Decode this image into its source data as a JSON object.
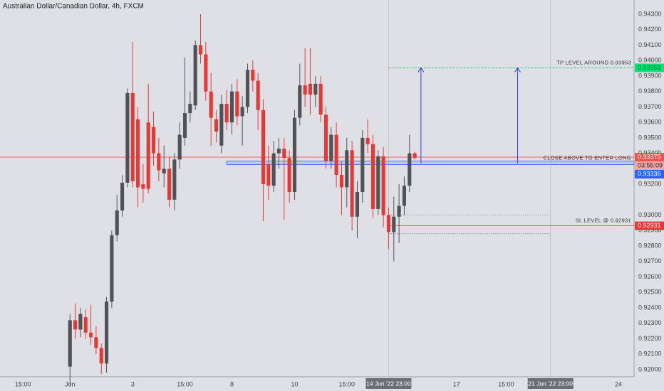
{
  "chart_data": {
    "type": "candlestick",
    "title": "Australian Dollar/Canadian Dollar, 4h, FXCM",
    "x": [
      0,
      1,
      2,
      3,
      4,
      5,
      6,
      7,
      8,
      9,
      10,
      11,
      12,
      13,
      14,
      15,
      16,
      17,
      18,
      19,
      20,
      21,
      22,
      23,
      24,
      25,
      26,
      27,
      28,
      29,
      30,
      31,
      32,
      33,
      34,
      35,
      36,
      37,
      38,
      39,
      40,
      41,
      42,
      43,
      44,
      45,
      46,
      47,
      48,
      49,
      50,
      51,
      52,
      53,
      54,
      55,
      56,
      57,
      58,
      59,
      60,
      61,
      62,
      63,
      64,
      65,
      66
    ],
    "open": [
      0.9202,
      0.9232,
      0.9226,
      0.9234,
      0.9224,
      0.9221,
      0.9214,
      0.9204,
      0.9244,
      0.9287,
      0.9303,
      0.9321,
      0.9379,
      0.9362,
      0.932,
      0.936,
      0.9357,
      0.934,
      0.9327,
      0.933,
      0.931,
      0.9336,
      0.935,
      0.9366,
      0.9371,
      0.941,
      0.9404,
      0.938,
      0.9362,
      0.9345,
      0.9372,
      0.936,
      0.938,
      0.9364,
      0.937,
      0.9394,
      0.9387,
      0.9368,
      0.9333,
      0.9319,
      0.934,
      0.9343,
      0.9337,
      0.9315,
      0.9363,
      0.9384,
      0.9385,
      0.9378,
      0.9385,
      0.9365,
      0.9335,
      0.9352,
      0.9326,
      0.9318,
      0.9342,
      0.9299,
      0.9315,
      0.935,
      0.9346,
      0.9304,
      0.9338,
      0.93,
      0.9289,
      0.9299,
      0.9306,
      0.9319,
      0.934
    ],
    "high": [
      0.9236,
      0.9243,
      0.924,
      0.9239,
      0.9242,
      0.9228,
      0.9217,
      0.9247,
      0.929,
      0.9313,
      0.9326,
      0.9382,
      0.9412,
      0.937,
      0.9333,
      0.9385,
      0.9367,
      0.935,
      0.9345,
      0.9338,
      0.934,
      0.936,
      0.9402,
      0.938,
      0.9413,
      0.943,
      0.9412,
      0.9392,
      0.9368,
      0.9378,
      0.9381,
      0.9385,
      0.9388,
      0.9377,
      0.9398,
      0.94,
      0.9392,
      0.9375,
      0.9345,
      0.9348,
      0.935,
      0.935,
      0.9342,
      0.9368,
      0.9398,
      0.9408,
      0.9408,
      0.939,
      0.939,
      0.937,
      0.9357,
      0.936,
      0.9335,
      0.935,
      0.9348,
      0.9322,
      0.9355,
      0.9362,
      0.9352,
      0.9342,
      0.9344,
      0.9305,
      0.9312,
      0.932,
      0.9325,
      0.9352,
      0.9341
    ],
    "low": [
      0.919,
      0.922,
      0.9221,
      0.922,
      0.9216,
      0.921,
      0.9197,
      0.9198,
      0.924,
      0.9283,
      0.9299,
      0.9318,
      0.9318,
      0.9305,
      0.9308,
      0.9314,
      0.9332,
      0.9322,
      0.9318,
      0.9305,
      0.9303,
      0.933,
      0.9345,
      0.936,
      0.9368,
      0.9398,
      0.9374,
      0.9345,
      0.9347,
      0.934,
      0.9355,
      0.9352,
      0.9358,
      0.9345,
      0.9366,
      0.938,
      0.9355,
      0.9296,
      0.931,
      0.9315,
      0.933,
      0.9297,
      0.9308,
      0.931,
      0.9358,
      0.937,
      0.9365,
      0.937,
      0.936,
      0.933,
      0.933,
      0.9318,
      0.93,
      0.9305,
      0.929,
      0.9285,
      0.9308,
      0.934,
      0.9298,
      0.93,
      0.9292,
      0.9278,
      0.927,
      0.9282,
      0.93,
      0.9315,
      0.9336
    ],
    "close": [
      0.9232,
      0.9226,
      0.9236,
      0.9224,
      0.9221,
      0.9214,
      0.9204,
      0.9244,
      0.9287,
      0.9303,
      0.9321,
      0.9379,
      0.9322,
      0.9318,
      0.9317,
      0.9317,
      0.934,
      0.9329,
      0.933,
      0.931,
      0.9336,
      0.9352,
      0.9366,
      0.9372,
      0.941,
      0.9404,
      0.938,
      0.9363,
      0.9354,
      0.9372,
      0.936,
      0.938,
      0.9364,
      0.937,
      0.9394,
      0.9387,
      0.9368,
      0.932,
      0.9319,
      0.934,
      0.9343,
      0.9337,
      0.9315,
      0.9363,
      0.9384,
      0.9378,
      0.9378,
      0.9385,
      0.9365,
      0.9335,
      0.9352,
      0.9326,
      0.9318,
      0.9342,
      0.9299,
      0.9315,
      0.935,
      0.9346,
      0.9304,
      0.9338,
      0.93,
      0.9289,
      0.9299,
      0.9306,
      0.9319,
      0.934,
      0.9337
    ],
    "up_color": "#505258",
    "down_color": "#e53935",
    "xlim": [
      -13.4,
      108
    ],
    "ylim": [
      0.91954,
      0.94392
    ],
    "xticks": [
      {
        "value": -9,
        "label": "15:00"
      },
      {
        "value": 0,
        "label": "Jun"
      },
      {
        "value": 12,
        "label": "3"
      },
      {
        "value": 22,
        "label": "15:00"
      },
      {
        "value": 31,
        "label": "8"
      },
      {
        "value": 43,
        "label": "10"
      },
      {
        "value": 53,
        "label": "15:00"
      },
      {
        "value": 61,
        "label": "14 Jun '22  23:00",
        "highlight": true
      },
      {
        "value": 74,
        "label": "17"
      },
      {
        "value": 83.5,
        "label": "15:00"
      },
      {
        "value": 92,
        "label": "21 Jun '22  23:00",
        "highlight": true
      },
      {
        "value": 105,
        "label": "24"
      }
    ],
    "yticks": [
      {
        "value": 0.943,
        "label": "0.94300"
      },
      {
        "value": 0.942,
        "label": "0.94200"
      },
      {
        "value": 0.941,
        "label": "0.94100"
      },
      {
        "value": 0.94,
        "label": "0.94000"
      },
      {
        "value": 0.939,
        "label": "0.93900"
      },
      {
        "value": 0.938,
        "label": "0.93800"
      },
      {
        "value": 0.937,
        "label": "0.93700"
      },
      {
        "value": 0.936,
        "label": "0.93600"
      },
      {
        "value": 0.935,
        "label": "0.93500"
      },
      {
        "value": 0.934,
        "label": "0.93400"
      },
      {
        "value": 0.932,
        "label": "0.93200"
      },
      {
        "value": 0.93,
        "label": "0.93000"
      },
      {
        "value": 0.929,
        "label": "0.92900"
      },
      {
        "value": 0.928,
        "label": "0.92800"
      },
      {
        "value": 0.927,
        "label": "0.92700"
      },
      {
        "value": 0.926,
        "label": "0.92600"
      },
      {
        "value": 0.925,
        "label": "0.92500"
      },
      {
        "value": 0.924,
        "label": "0.92400"
      },
      {
        "value": 0.923,
        "label": "0.92300"
      },
      {
        "value": 0.922,
        "label": "0.92200"
      },
      {
        "value": 0.921,
        "label": "0.92100"
      },
      {
        "value": 0.92,
        "label": "0.92000"
      }
    ],
    "levels": {
      "tp": {
        "value": 0.93953,
        "label": "TP LEVEL AROUND 0.93953",
        "color": "#00c853",
        "from": 61
      },
      "price": {
        "value": 0.93375,
        "countdown": "03:55:09",
        "color": "#ef5350",
        "from": -13.4
      },
      "entry": {
        "value": 0.93336,
        "label": "CLOSE ABOVE TO ENTER LONG",
        "color": "#2962ff",
        "from": 30
      },
      "sl": {
        "value": 0.92931,
        "label": "SL LEVEL @ 0.92931",
        "color": "#e53935",
        "from": 61
      }
    },
    "dotted_levels": [
      0.93,
      0.9288
    ],
    "arrows_x": [
      67.2,
      85.7
    ]
  }
}
